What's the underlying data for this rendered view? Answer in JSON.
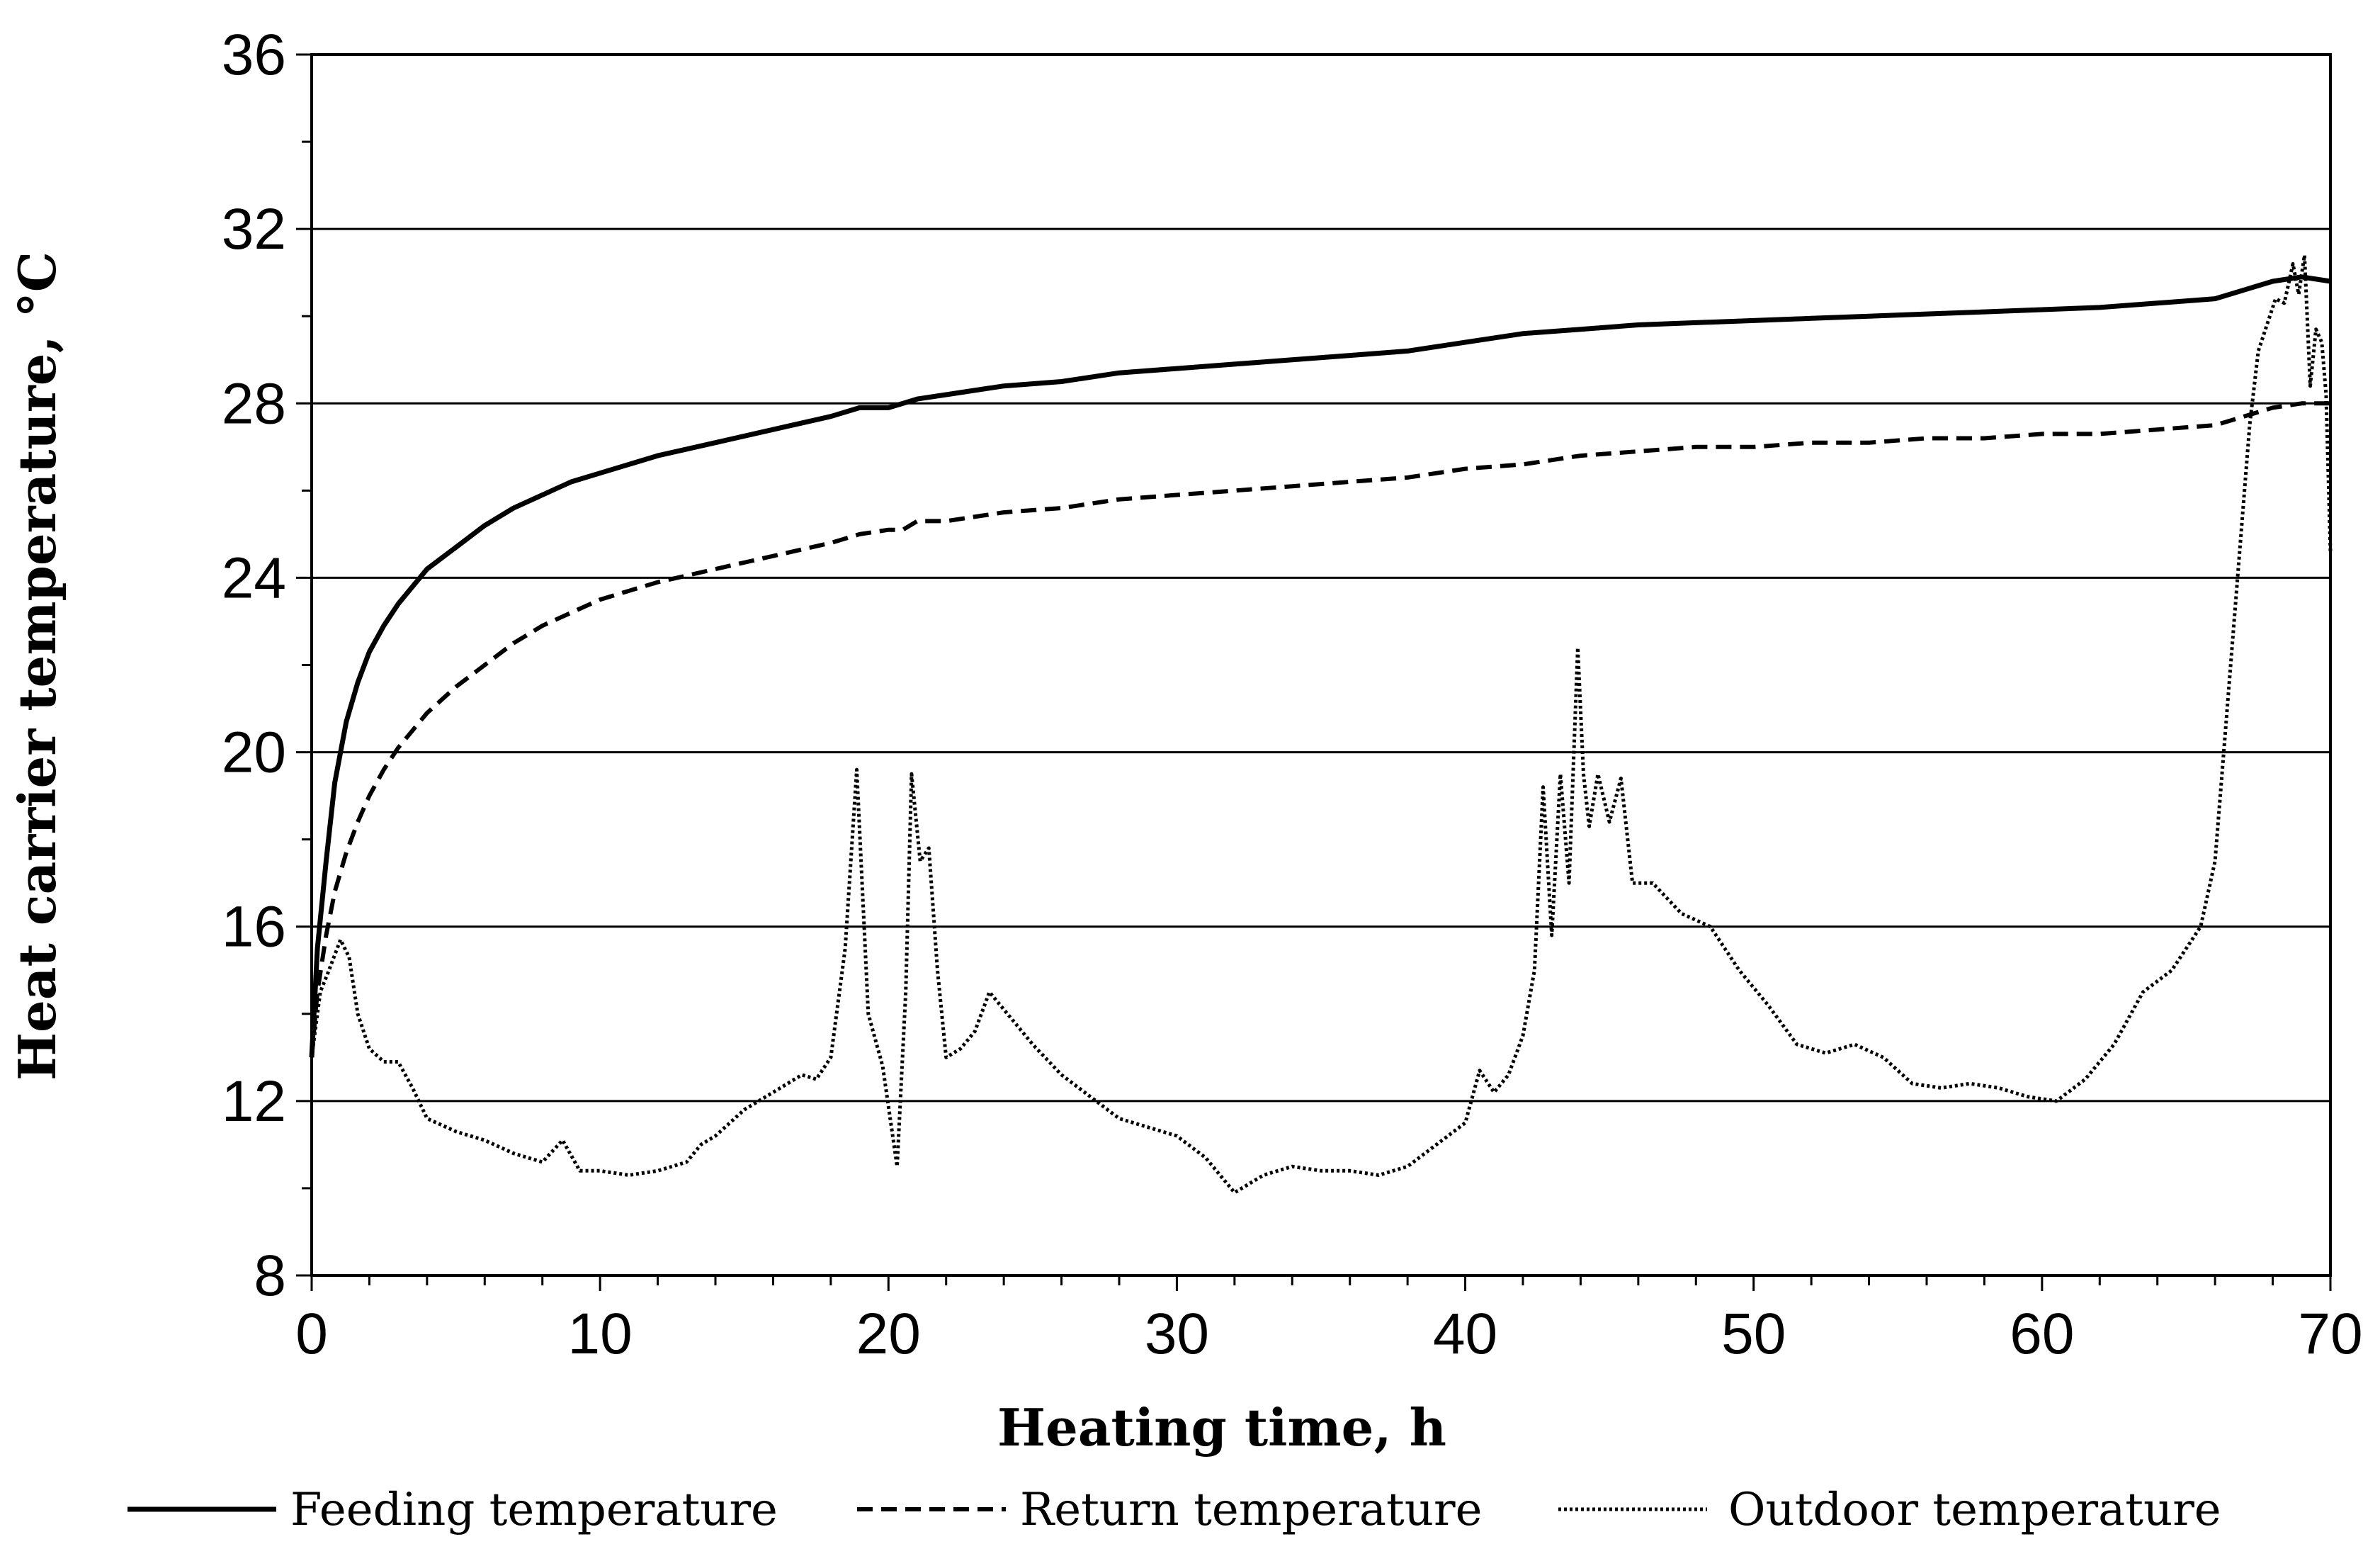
{
  "chart_data": {
    "type": "line",
    "title": "",
    "xlabel": "Heating time, h",
    "ylabel": "Heat carrier temperature, °C",
    "xlim": [
      0,
      70
    ],
    "ylim": [
      8,
      36
    ],
    "xticks": [
      0,
      10,
      20,
      30,
      40,
      50,
      60,
      70
    ],
    "yticks": [
      8,
      12,
      16,
      20,
      24,
      28,
      32,
      36
    ],
    "grid": "horizontal",
    "legend_position": "bottom",
    "series": [
      {
        "name": "Feeding temperature",
        "style": "solid",
        "x": [
          0,
          0.2,
          0.5,
          0.8,
          1.2,
          1.6,
          2,
          2.5,
          3,
          3.5,
          4,
          5,
          6,
          7,
          8,
          9,
          10,
          12,
          14,
          16,
          18,
          19,
          20,
          20.5,
          21,
          22,
          24,
          26,
          28,
          30,
          32,
          34,
          36,
          38,
          40,
          42,
          44,
          46,
          48,
          50,
          52,
          54,
          56,
          58,
          60,
          62,
          64,
          66,
          67,
          68,
          69,
          70
        ],
        "y": [
          13.0,
          15.5,
          17.5,
          19.3,
          20.7,
          21.6,
          22.3,
          22.9,
          23.4,
          23.8,
          24.2,
          24.7,
          25.2,
          25.6,
          25.9,
          26.2,
          26.4,
          26.8,
          27.1,
          27.4,
          27.7,
          27.9,
          27.9,
          28.0,
          28.1,
          28.2,
          28.4,
          28.5,
          28.7,
          28.8,
          28.9,
          29.0,
          29.1,
          29.2,
          29.4,
          29.6,
          29.7,
          29.8,
          29.85,
          29.9,
          29.95,
          30.0,
          30.05,
          30.1,
          30.15,
          30.2,
          30.3,
          30.4,
          30.6,
          30.8,
          30.9,
          30.8
        ]
      },
      {
        "name": "Return temperature",
        "style": "dashed",
        "x": [
          0,
          0.2,
          0.5,
          0.8,
          1.2,
          1.6,
          2,
          2.5,
          3,
          4,
          5,
          6,
          7,
          8,
          10,
          12,
          14,
          16,
          18,
          19,
          20,
          20.5,
          21,
          22,
          24,
          26,
          28,
          30,
          32,
          34,
          36,
          38,
          40,
          42,
          44,
          46,
          48,
          50,
          52,
          54,
          56,
          58,
          60,
          62,
          64,
          66,
          67,
          68,
          69,
          70
        ],
        "y": [
          13.0,
          14.5,
          15.8,
          16.8,
          17.7,
          18.4,
          19.0,
          19.6,
          20.1,
          20.9,
          21.5,
          22.0,
          22.5,
          22.9,
          23.5,
          23.9,
          24.2,
          24.5,
          24.8,
          25.0,
          25.1,
          25.1,
          25.3,
          25.3,
          25.5,
          25.6,
          25.8,
          25.9,
          26.0,
          26.1,
          26.2,
          26.3,
          26.5,
          26.6,
          26.8,
          26.9,
          27.0,
          27.0,
          27.1,
          27.1,
          27.2,
          27.2,
          27.3,
          27.3,
          27.4,
          27.5,
          27.7,
          27.9,
          28.0,
          28.0
        ]
      },
      {
        "name": "Outdoor temperature",
        "style": "dotted",
        "x": [
          0,
          0.3,
          0.6,
          1.0,
          1.3,
          1.6,
          2.0,
          2.5,
          3.0,
          3.5,
          4.0,
          5.0,
          6.0,
          7.0,
          8.0,
          8.7,
          9.3,
          10.0,
          11.0,
          12.0,
          13.0,
          13.5,
          14.0,
          15.0,
          16.0,
          17.0,
          17.5,
          18.0,
          18.5,
          18.9,
          19.3,
          19.8,
          20.3,
          20.6,
          20.8,
          21.1,
          21.4,
          21.7,
          22.0,
          22.5,
          23.0,
          23.5,
          24.0,
          24.5,
          25.0,
          26.0,
          27.0,
          28.0,
          29.0,
          30.0,
          31.0,
          32.0,
          33.0,
          34.0,
          35.0,
          36.0,
          37.0,
          38.0,
          39.0,
          40.0,
          40.5,
          41.0,
          41.5,
          42.0,
          42.4,
          42.7,
          43.0,
          43.3,
          43.6,
          43.9,
          44.1,
          44.3,
          44.6,
          45.0,
          45.4,
          45.8,
          46.5,
          47.5,
          48.5,
          49.5,
          50.5,
          51.5,
          52.5,
          53.5,
          54.5,
          55.5,
          56.5,
          57.5,
          58.5,
          59.5,
          60.5,
          61.5,
          62.5,
          63.5,
          64.5,
          65.5,
          66.0,
          66.3,
          66.6,
          66.9,
          67.2,
          67.5,
          67.8,
          68.1,
          68.4,
          68.7,
          68.9,
          69.1,
          69.3,
          69.5,
          69.7,
          69.85,
          70.0
        ],
        "y": [
          13.0,
          14.5,
          15.0,
          15.7,
          15.3,
          14.0,
          13.2,
          12.9,
          12.9,
          12.3,
          11.6,
          11.3,
          11.1,
          10.8,
          10.6,
          11.1,
          10.4,
          10.4,
          10.3,
          10.4,
          10.6,
          11.0,
          11.2,
          11.8,
          12.2,
          12.6,
          12.5,
          13.0,
          15.5,
          19.6,
          14.0,
          12.8,
          10.5,
          14.5,
          19.5,
          17.5,
          17.8,
          15.0,
          13.0,
          13.2,
          13.6,
          14.5,
          14.1,
          13.7,
          13.3,
          12.6,
          12.1,
          11.6,
          11.4,
          11.2,
          10.7,
          9.9,
          10.3,
          10.5,
          10.4,
          10.4,
          10.3,
          10.5,
          11.0,
          11.5,
          12.7,
          12.2,
          12.6,
          13.5,
          15.0,
          19.2,
          15.8,
          19.5,
          17.0,
          22.4,
          19.5,
          18.3,
          19.5,
          18.4,
          19.4,
          17.0,
          17.0,
          16.3,
          16.0,
          15.0,
          14.2,
          13.3,
          13.1,
          13.3,
          13.0,
          12.4,
          12.3,
          12.4,
          12.3,
          12.1,
          12.0,
          12.5,
          13.3,
          14.5,
          15.0,
          16.0,
          17.5,
          20.0,
          22.5,
          25.0,
          27.5,
          29.2,
          29.8,
          30.4,
          30.3,
          31.2,
          30.5,
          31.4,
          28.4,
          29.7,
          29.4,
          28.2,
          24.6
        ]
      }
    ]
  }
}
